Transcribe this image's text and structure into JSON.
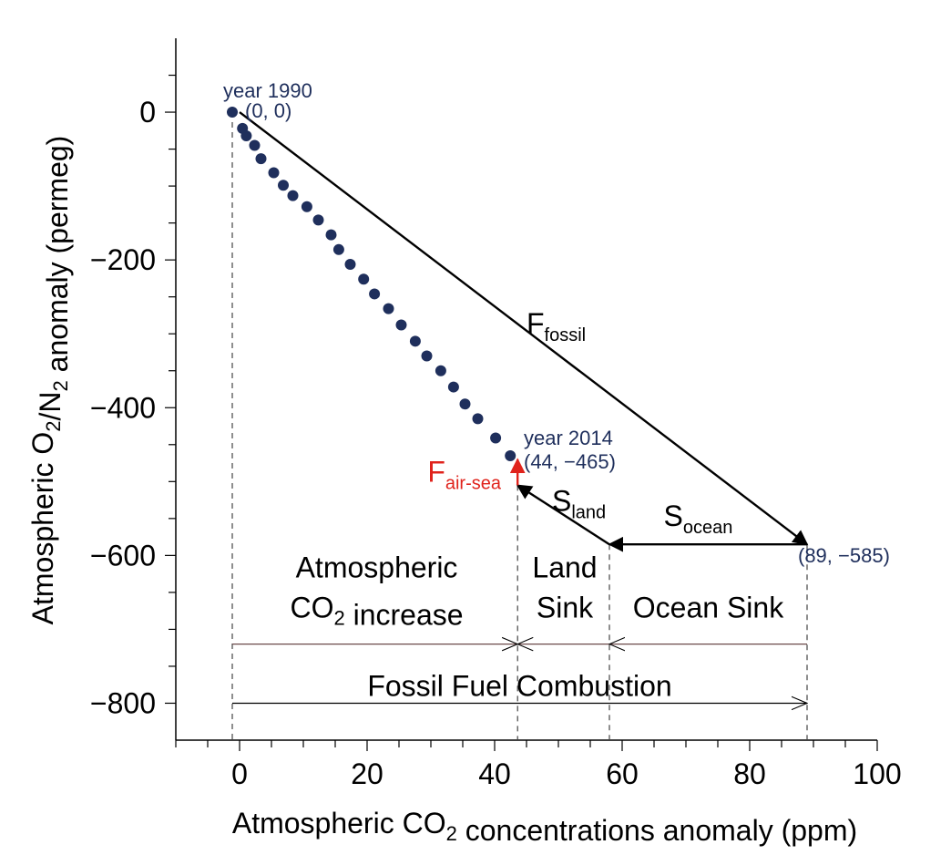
{
  "chart_data": {
    "type": "scatter",
    "xlabel": "Atmospheric CO2 concentrations anomaly (ppm)",
    "ylabel": "Atmospheric O2/N2 anomaly (permeg)",
    "xlim": [
      -10,
      100
    ],
    "ylim": [
      -850,
      100
    ],
    "x_ticks": [
      0,
      20,
      40,
      60,
      80,
      100
    ],
    "x_tick_labels": [
      "0",
      "20",
      "40",
      "60",
      "80",
      "100"
    ],
    "y_ticks": [
      0,
      -200,
      -400,
      -600,
      -800
    ],
    "y_tick_labels": [
      "0",
      "−200",
      "−400",
      "−600",
      "−800"
    ],
    "x_minor_step": 5,
    "y_minor_step": 50,
    "grid": false,
    "points_color": "#1f2f5c",
    "points": [
      {
        "x": 0,
        "y": 0
      },
      {
        "x": 1.6,
        "y": -22
      },
      {
        "x": 2.2,
        "y": -32
      },
      {
        "x": 3.5,
        "y": -45
      },
      {
        "x": 4.5,
        "y": -63
      },
      {
        "x": 6.5,
        "y": -82
      },
      {
        "x": 8,
        "y": -99
      },
      {
        "x": 9.5,
        "y": -113
      },
      {
        "x": 11.7,
        "y": -128
      },
      {
        "x": 13.5,
        "y": -146
      },
      {
        "x": 15.5,
        "y": -166
      },
      {
        "x": 16.7,
        "y": -186
      },
      {
        "x": 18.5,
        "y": -206
      },
      {
        "x": 20.6,
        "y": -226
      },
      {
        "x": 22.3,
        "y": -246
      },
      {
        "x": 24.5,
        "y": -266
      },
      {
        "x": 26.5,
        "y": -288
      },
      {
        "x": 28.7,
        "y": -310
      },
      {
        "x": 30.5,
        "y": -330
      },
      {
        "x": 32.7,
        "y": -350
      },
      {
        "x": 34.7,
        "y": -372
      },
      {
        "x": 36.5,
        "y": -395
      },
      {
        "x": 38.5,
        "y": -415
      },
      {
        "x": 41.3,
        "y": -441
      },
      {
        "x": 43.6,
        "y": -465
      }
    ],
    "point_labels": [
      {
        "year": "year 1990",
        "coord": "(0, 0)",
        "x": 0,
        "y": 0
      },
      {
        "year": "year 2014",
        "coord": "(44, −465)",
        "x": 44,
        "y": -465
      },
      {
        "year": "",
        "coord": "(89, −585)",
        "x": 89,
        "y": -585
      }
    ],
    "arrows": [
      {
        "name": "F_fossil",
        "label": "F",
        "sub": "fossil",
        "from": [
          0,
          0
        ],
        "to": [
          89,
          -585
        ],
        "color": "#000000"
      },
      {
        "name": "S_ocean",
        "label": "S",
        "sub": "ocean",
        "from": [
          89,
          -585
        ],
        "to": [
          58,
          -585
        ],
        "color": "#000000"
      },
      {
        "name": "S_land",
        "label": "S",
        "sub": "land",
        "from": [
          58,
          -585
        ],
        "to": [
          43.6,
          -505
        ],
        "color": "#000000"
      },
      {
        "name": "F_air-sea",
        "label": "F",
        "sub": "air-sea",
        "from": [
          43.6,
          -505
        ],
        "to": [
          43.6,
          -470
        ],
        "color": "#e0231c"
      }
    ],
    "regions": {
      "boundaries_x": [
        0,
        43.6,
        58,
        89
      ],
      "labels": [
        {
          "lines": [
            "Atmospheric",
            "CO2 increase"
          ],
          "x": 21.5
        },
        {
          "lines": [
            "Land",
            "Sink"
          ],
          "x": 51
        },
        {
          "lines": [
            "",
            "Ocean Sink"
          ],
          "x": 73.5
        }
      ],
      "partition_y": -720,
      "total_label": "Fossil Fuel Combustion",
      "total_y": -800
    }
  }
}
